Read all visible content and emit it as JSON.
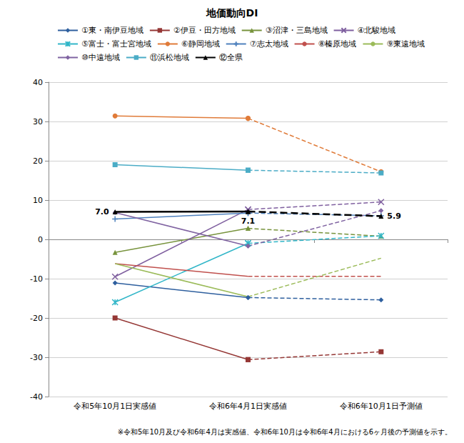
{
  "chart_data": {
    "type": "line",
    "title": "地価動向DI",
    "note": "※令和5年10月及び令和6年4月は実感値、令和6年10月は令和6年4月における6ヶ月後の予測値を示す。",
    "categories": [
      "令和5年10月1日実感値",
      "令和6年4月1日実感値",
      "令和6年10月1日予測値"
    ],
    "line_style": "dashed_last",
    "legend": "top",
    "grid": true,
    "ylim": [
      -40,
      40
    ],
    "yticks": [
      -40,
      -30,
      -20,
      -10,
      0,
      10,
      20,
      30,
      40
    ],
    "series": [
      {
        "name": "①東・南伊豆地域",
        "color": "#2E5F9E",
        "marker": "diamond",
        "values": [
          -11.1,
          -14.8,
          -15.4
        ]
      },
      {
        "name": "②伊豆・田方地域",
        "color": "#953735",
        "marker": "square",
        "values": [
          -20.0,
          -30.6,
          -28.6
        ]
      },
      {
        "name": "③沼津・三島地域",
        "color": "#77933C",
        "marker": "triangle",
        "values": [
          -3.3,
          2.8,
          0.8
        ]
      },
      {
        "name": "④北駿地域",
        "color": "#7F5F9F",
        "marker": "x",
        "values": [
          -9.5,
          7.6,
          9.5
        ]
      },
      {
        "name": "⑤富士・富士宮地域",
        "color": "#31B6C8",
        "marker": "asterisk",
        "values": [
          -16.0,
          -1.0,
          0.9
        ]
      },
      {
        "name": "⑥静岡地域",
        "color": "#E07B39",
        "marker": "circle",
        "values": [
          31.4,
          30.8,
          17.2
        ]
      },
      {
        "name": "⑦志太地域",
        "color": "#4F81BD",
        "marker": "plus",
        "values": [
          5.2,
          6.7,
          6.0
        ]
      },
      {
        "name": "⑧榛原地域",
        "color": "#C0504D",
        "marker": "none",
        "values": [
          -6.2,
          -9.4,
          -9.4
        ]
      },
      {
        "name": "⑨東遠地域",
        "color": "#9BBB59",
        "marker": "none",
        "values": [
          -6.2,
          -14.6,
          -4.8
        ]
      },
      {
        "name": "⑩中遠地域",
        "color": "#8064A2",
        "marker": "diamond",
        "values": [
          6.8,
          -1.7,
          7.3
        ]
      },
      {
        "name": "⑪浜松地域",
        "color": "#4BACC6",
        "marker": "square",
        "values": [
          19.0,
          17.6,
          16.9
        ]
      },
      {
        "name": "⑫全県",
        "color": "#000000",
        "marker": "triangle",
        "values": [
          7.0,
          7.1,
          5.9
        ],
        "data_labels": true,
        "value_labels": [
          "7.0",
          "7.1",
          "5.9"
        ]
      }
    ]
  }
}
